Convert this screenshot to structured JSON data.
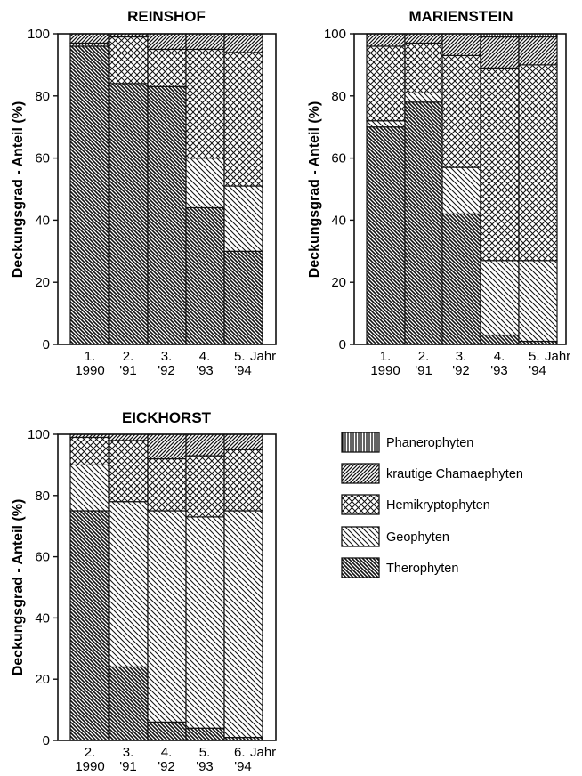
{
  "series_names": [
    "Phanerophyten",
    "krautige Chamaephyten",
    "Hemikryptophyten",
    "Geophyten",
    "Therophyten"
  ],
  "chart_data": [
    {
      "type": "bar",
      "stacked": true,
      "title": "REINSHOF",
      "ylabel": "Deckungsgrad - Anteil (%)",
      "xlabel": "Jahr",
      "ylim": [
        0,
        100
      ],
      "yticks": [
        0,
        20,
        40,
        60,
        80,
        100
      ],
      "categories": [
        {
          "line1": "1.",
          "line2": "1990"
        },
        {
          "line1": "2.",
          "line2": "'91"
        },
        {
          "line1": "3.",
          "line2": "'92"
        },
        {
          "line1": "4.",
          "line2": "'93"
        },
        {
          "line1": "5.",
          "line2": "'94"
        }
      ],
      "series": [
        {
          "name": "Therophyten",
          "values": [
            96,
            84,
            83,
            44,
            30
          ]
        },
        {
          "name": "Geophyten",
          "values": [
            0,
            0,
            0,
            16,
            21
          ]
        },
        {
          "name": "Hemikryptophyten",
          "values": [
            1,
            15,
            12,
            35,
            43
          ]
        },
        {
          "name": "krautige Chamaephyten",
          "values": [
            3,
            1,
            5,
            5,
            6
          ]
        },
        {
          "name": "Phanerophyten",
          "values": [
            0,
            0,
            0,
            0,
            0
          ]
        }
      ]
    },
    {
      "type": "bar",
      "stacked": true,
      "title": "MARIENSTEIN",
      "ylabel": "Deckungsgrad - Anteil (%)",
      "xlabel": "Jahr",
      "ylim": [
        0,
        100
      ],
      "yticks": [
        0,
        20,
        40,
        60,
        80,
        100
      ],
      "categories": [
        {
          "line1": "1.",
          "line2": "1990"
        },
        {
          "line1": "2.",
          "line2": "'91"
        },
        {
          "line1": "3.",
          "line2": "'92"
        },
        {
          "line1": "4.",
          "line2": "'93"
        },
        {
          "line1": "5.",
          "line2": "'94"
        }
      ],
      "series": [
        {
          "name": "Therophyten",
          "values": [
            70,
            78,
            42,
            3,
            1
          ]
        },
        {
          "name": "Geophyten",
          "values": [
            2,
            3,
            15,
            24,
            26
          ]
        },
        {
          "name": "Hemikryptophyten",
          "values": [
            24,
            16,
            36,
            62,
            63
          ]
        },
        {
          "name": "krautige Chamaephyten",
          "values": [
            4,
            3,
            7,
            10,
            9
          ]
        },
        {
          "name": "Phanerophyten",
          "values": [
            0,
            0,
            0,
            1,
            1
          ]
        }
      ]
    },
    {
      "type": "bar",
      "stacked": true,
      "title": "EICKHORST",
      "ylabel": "Deckungsgrad - Anteil (%)",
      "xlabel": "Jahr",
      "ylim": [
        0,
        100
      ],
      "yticks": [
        0,
        20,
        40,
        60,
        80,
        100
      ],
      "categories": [
        {
          "line1": "2.",
          "line2": "1990"
        },
        {
          "line1": "3.",
          "line2": "'91"
        },
        {
          "line1": "4.",
          "line2": "'92"
        },
        {
          "line1": "5.",
          "line2": "'93"
        },
        {
          "line1": "6.",
          "line2": "'94"
        }
      ],
      "series": [
        {
          "name": "Therophyten",
          "values": [
            75,
            24,
            6,
            4,
            1
          ]
        },
        {
          "name": "Geophyten",
          "values": [
            15,
            54,
            69,
            69,
            74
          ]
        },
        {
          "name": "Hemikryptophyten",
          "values": [
            9,
            20,
            17,
            20,
            20
          ]
        },
        {
          "name": "krautige Chamaephyten",
          "values": [
            1,
            2,
            8,
            7,
            5
          ]
        },
        {
          "name": "Phanerophyten",
          "values": [
            0,
            0,
            0,
            0,
            0
          ]
        }
      ]
    }
  ]
}
